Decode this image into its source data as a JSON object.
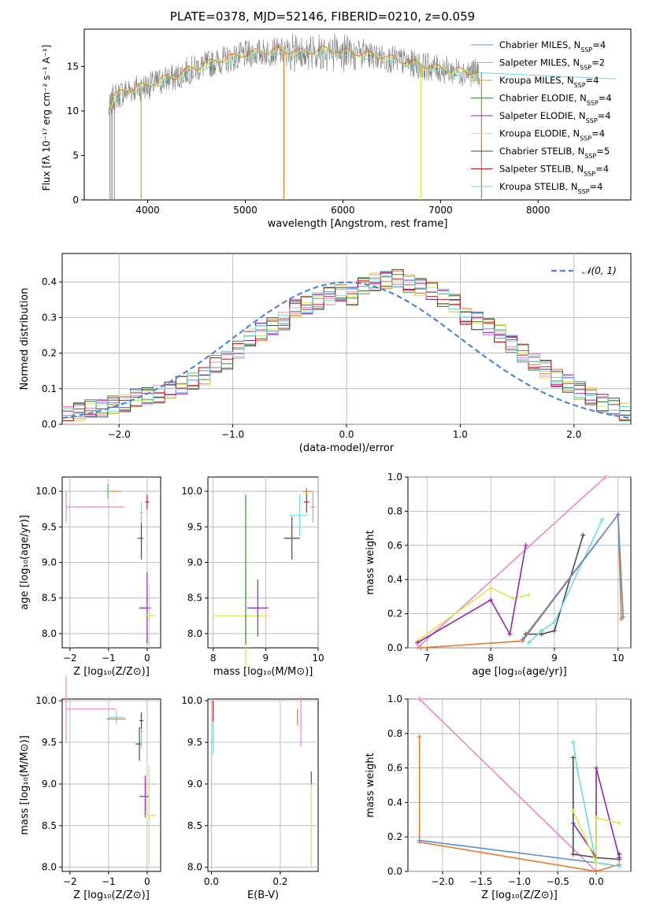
{
  "title": "PLATE=0378, MJD=52146, FIBERID=0210, z=0.059",
  "colors": {
    "chabrier_miles": "#5b8fd8",
    "salpeter_miles": "#e887c9",
    "kroupa_miles": "#b7b81f",
    "chabrier_elodie": "#3a8a3a",
    "salpeter_elodie": "#8e2aa8",
    "kroupa_elodie": "#d7e64d",
    "chabrier_stelib": "#4a4a4a",
    "salpeter_stelib": "#c41a1a",
    "kroupa_stelib": "#6fd8dd",
    "data_spectrum": "#808080",
    "miles_fit_line": "#e07a30",
    "normal_curve": "#4f86d6"
  },
  "chart_data": [
    {
      "type": "line",
      "title": "PLATE=0378, MJD=52146, FIBERID=0210, z=0.059",
      "xlabel": "wavelength [Angstrom, rest frame]",
      "ylabel": "Flux [f_λ 10^-17 erg cm^-2 s^-1 A^-1]",
      "xlim": [
        3350,
        8950
      ],
      "ylim": [
        0,
        19.2
      ],
      "xticks": [
        4000,
        5000,
        6000,
        7000,
        8000
      ],
      "yticks": [
        0,
        5,
        10,
        15
      ],
      "legend_position": "top-right",
      "legend": [
        "Chabrier MILES, N_SSP=4",
        "Salpeter MILES, N_SSP=2",
        "Kroupa MILES, N_SSP=4",
        "Chabrier ELODIE, N_SSP=4",
        "Salpeter ELODIE, N_SSP=4",
        "Kroupa ELODIE, N_SSP=4",
        "Chabrier STELIB, N_SSP=5",
        "Salpeter STELIB, N_SSP=4",
        "Kroupa STELIB, N_SSP=4"
      ],
      "continuum": {
        "x": [
          3600,
          3650,
          3700,
          3800,
          3900,
          4000,
          4100,
          4200,
          4300,
          4400,
          4500,
          4600,
          4700,
          4800,
          4900,
          5000,
          5100,
          5200,
          5300,
          5400,
          5500,
          5600,
          5700,
          5800,
          5900,
          6000,
          6100,
          6200,
          6300,
          6400,
          6500,
          6600,
          6700,
          6800,
          6900,
          7000,
          7100,
          7200,
          7300,
          7400
        ],
        "y": [
          10.0,
          11.5,
          11.8,
          12.3,
          12.6,
          12.8,
          13.2,
          13.6,
          13.8,
          14.5,
          14.8,
          15.2,
          15.5,
          15.8,
          16.0,
          16.3,
          16.5,
          16.6,
          16.7,
          16.6,
          16.6,
          16.5,
          16.6,
          16.8,
          16.7,
          16.6,
          16.5,
          16.3,
          16.2,
          16.0,
          15.8,
          15.6,
          15.3,
          15.1,
          14.9,
          14.7,
          14.5,
          14.4,
          14.3,
          14.3
        ]
      },
      "dips": [
        {
          "x": 3933,
          "y": 0
        },
        {
          "x": 5395,
          "y": 0
        },
        {
          "x": 6800,
          "y": 0
        },
        {
          "x": 7420,
          "y": 0
        }
      ],
      "model_tail": {
        "x": [
          7400,
          8200,
          8800
        ],
        "y": [
          14.3,
          13.9,
          13.6
        ]
      }
    },
    {
      "type": "line",
      "xlabel": "(data-model)/error",
      "ylabel": "Normed distribution",
      "xlim": [
        -2.5,
        2.5
      ],
      "ylim": [
        0,
        0.48
      ],
      "xticks": [
        -2,
        -1,
        0,
        1,
        2
      ],
      "yticks": [
        0.0,
        0.1,
        0.2,
        0.3,
        0.4
      ],
      "legend_position": "top-right",
      "legend": [
        "𝒩(0, 1)"
      ],
      "bin_width": 0.1,
      "bin_start": -2.5,
      "histogram": [
        0.025,
        0.035,
        0.045,
        0.045,
        0.055,
        0.06,
        0.075,
        0.08,
        0.085,
        0.095,
        0.11,
        0.12,
        0.135,
        0.17,
        0.18,
        0.21,
        0.245,
        0.26,
        0.275,
        0.29,
        0.325,
        0.335,
        0.345,
        0.36,
        0.37,
        0.36,
        0.39,
        0.4,
        0.405,
        0.41,
        0.395,
        0.385,
        0.375,
        0.355,
        0.34,
        0.305,
        0.29,
        0.275,
        0.255,
        0.225,
        0.2,
        0.175,
        0.155,
        0.13,
        0.115,
        0.095,
        0.08,
        0.06,
        0.05,
        0.035
      ]
    },
    {
      "type": "scatter",
      "xlabel": "Z [log10(Z/Z⊙)]",
      "ylabel": "age  [log10(age/yr)]",
      "xlim": [
        -2.2,
        0.35
      ],
      "ylim": [
        7.8,
        10.2
      ],
      "xticks": [
        -2,
        -1,
        0
      ],
      "yticks": [
        8.0,
        8.5,
        9.0,
        9.5,
        10.0
      ],
      "points": [
        {
          "x": -2.1,
          "y": 9.78,
          "xerr": [
            0.0,
            1.5
          ],
          "yerr": 0.22,
          "series": "salpeter_miles"
        },
        {
          "x": -1.02,
          "y": 10.0,
          "xerr": [
            0.05,
            0.35
          ],
          "yerr": 0.06,
          "series": "miles_fit_line"
        },
        {
          "x": -1.02,
          "y": 10.0,
          "xerr": [
            0.02,
            0.02
          ],
          "yerr": 0.1,
          "series": "kroupa_stelib"
        },
        {
          "x": -0.15,
          "y": 9.34,
          "xerr": [
            0.1,
            0.05
          ],
          "yerr": 0.3,
          "series": "chabrier_stelib"
        },
        {
          "x": -0.15,
          "y": 9.7,
          "xerr": [
            0.05,
            0.05
          ],
          "yerr": 0.15,
          "series": "kroupa_stelib"
        },
        {
          "x": 0.0,
          "y": 8.36,
          "xerr": [
            0.2,
            0.1
          ],
          "yerr": 0.5,
          "series": "salpeter_elodie"
        },
        {
          "x": 0.05,
          "y": 8.25,
          "xerr": [
            0.1,
            0.15
          ],
          "yerr": 0.45,
          "series": "kroupa_elodie"
        },
        {
          "x": 0.0,
          "y": 9.85,
          "xerr": [
            0.05,
            0.05
          ],
          "yerr": 0.1,
          "series": "salpeter_stelib"
        }
      ]
    },
    {
      "type": "scatter",
      "xlabel": "mass [log10(M/M⊙)]",
      "xlim": [
        7.9,
        10.0
      ],
      "ylim": [
        7.8,
        10.2
      ],
      "xticks": [
        8,
        9,
        10
      ],
      "yticks": [
        8.0,
        8.5,
        9.0,
        9.5,
        10.0
      ],
      "points": [
        {
          "x": 8.62,
          "y": 8.25,
          "xerr": [
            0.62,
            0.45
          ],
          "yerr": 0.7,
          "series": "kroupa_elodie"
        },
        {
          "x": 8.62,
          "y": 8.9,
          "xerr": [
            0.0,
            0.0
          ],
          "yerr": 1.05,
          "series": "chabrier_elodie"
        },
        {
          "x": 8.85,
          "y": 8.36,
          "xerr": [
            0.2,
            0.2
          ],
          "yerr": 0.4,
          "series": "salpeter_elodie"
        },
        {
          "x": 9.5,
          "y": 9.34,
          "xerr": [
            0.15,
            0.15
          ],
          "yerr": 0.3,
          "series": "chabrier_stelib"
        },
        {
          "x": 9.65,
          "y": 9.66,
          "xerr": [
            0.2,
            0.15
          ],
          "yerr": 0.3,
          "series": "kroupa_stelib"
        },
        {
          "x": 9.78,
          "y": 9.85,
          "xerr": [
            0.05,
            0.05
          ],
          "yerr": 0.15,
          "series": "salpeter_stelib"
        },
        {
          "x": 9.78,
          "y": 10.0,
          "xerr": [
            0.08,
            0.1
          ],
          "yerr": 0.05,
          "series": "miles_fit_line"
        },
        {
          "x": 9.9,
          "y": 9.78,
          "xerr": [
            0.05,
            0.05
          ],
          "yerr": 0.22,
          "series": "salpeter_miles"
        }
      ]
    },
    {
      "type": "line",
      "xlabel": "age  [log10(age/yr)]",
      "ylabel": "mass weight",
      "xlim": [
        6.7,
        10.2
      ],
      "ylim": [
        0,
        1.0
      ],
      "xticks": [
        7,
        8,
        9,
        10
      ],
      "yticks": [
        0.0,
        0.2,
        0.4,
        0.6,
        0.8,
        1.0
      ],
      "series": [
        {
          "series": "salpeter_miles",
          "x": [
            6.85,
            9.8
          ],
          "y": [
            0.0,
            1.0
          ]
        },
        {
          "series": "kroupa_elodie",
          "x": [
            6.85,
            8.0,
            8.35,
            8.6
          ],
          "y": [
            0.04,
            0.35,
            0.29,
            0.31
          ]
        },
        {
          "series": "salpeter_elodie",
          "x": [
            6.85,
            8.0,
            8.3,
            8.55
          ],
          "y": [
            0.03,
            0.28,
            0.08,
            0.6
          ]
        },
        {
          "series": "chabrier_stelib",
          "x": [
            8.55,
            8.8,
            9.0,
            9.45
          ],
          "y": [
            0.08,
            0.08,
            0.1,
            0.66
          ]
        },
        {
          "series": "kroupa_stelib",
          "x": [
            8.6,
            8.8,
            9.0,
            9.75
          ],
          "y": [
            0.03,
            0.1,
            0.15,
            0.75
          ]
        },
        {
          "series": "miles_fit_line",
          "x": [
            6.9,
            8.5,
            10.0,
            10.05
          ],
          "y": [
            0.0,
            0.04,
            0.78,
            0.17
          ]
        },
        {
          "series": "chabrier_miles",
          "x": [
            8.5,
            10.0,
            10.08
          ],
          "y": [
            0.05,
            0.78,
            0.18
          ]
        }
      ]
    },
    {
      "type": "scatter",
      "xlabel": "Z [log10(Z/Z⊙)]",
      "ylabel": "mass [log10(M/M⊙)]",
      "xlim": [
        -2.2,
        0.35
      ],
      "ylim": [
        7.95,
        10.02
      ],
      "xticks": [
        -2,
        -1,
        0
      ],
      "yticks": [
        8.0,
        8.5,
        9.0,
        9.5,
        10.0
      ],
      "points": [
        {
          "x": -2.1,
          "y": 9.9,
          "xerr": [
            0.0,
            1.3
          ],
          "yerr": 0.4,
          "series": "salpeter_miles"
        },
        {
          "x": -0.8,
          "y": 9.78,
          "xerr": [
            0.25,
            0.25
          ],
          "yerr": 0.04,
          "series": "miles_fit_line"
        },
        {
          "x": -0.8,
          "y": 9.8,
          "xerr": [
            0.2,
            0.2
          ],
          "yerr": 0.08,
          "series": "kroupa_stelib"
        },
        {
          "x": -0.2,
          "y": 9.48,
          "xerr": [
            0.1,
            0.05
          ],
          "yerr": 0.2,
          "series": "chabrier_stelib"
        },
        {
          "x": -0.15,
          "y": 9.63,
          "xerr": [
            0.1,
            0.05
          ],
          "yerr": 0.2,
          "series": "kroupa_stelib"
        },
        {
          "x": -0.15,
          "y": 9.76,
          "xerr": [
            0.05,
            0.05
          ],
          "yerr": 0.1,
          "series": "salpeter_stelib"
        },
        {
          "x": -0.05,
          "y": 8.85,
          "xerr": [
            0.15,
            0.1
          ],
          "yerr": 0.25,
          "series": "salpeter_elodie"
        },
        {
          "x": 0.05,
          "y": 8.62,
          "xerr": [
            0.15,
            0.2
          ],
          "yerr": 0.6,
          "series": "kroupa_elodie"
        }
      ]
    },
    {
      "type": "scatter",
      "xlabel": "E(B-V)",
      "xlim": [
        -0.01,
        0.31
      ],
      "ylim": [
        7.95,
        10.02
      ],
      "xticks": [
        0.0,
        0.2
      ],
      "yticks": [
        8.0,
        8.5,
        9.0,
        9.5,
        10.0
      ],
      "points": [
        {
          "x": 0.005,
          "y": 9.7,
          "xerr": [
            0.0,
            0.0
          ],
          "yerr": 0.3,
          "series": "salpeter_stelib"
        },
        {
          "x": 0.005,
          "y": 9.55,
          "xerr": [
            0.0,
            0.0
          ],
          "yerr": 0.2,
          "series": "kroupa_stelib"
        },
        {
          "x": 0.25,
          "y": 9.8,
          "xerr": [
            0.0,
            0.0
          ],
          "yerr": 0.1,
          "series": "miles_fit_line"
        },
        {
          "x": 0.26,
          "y": 9.75,
          "xerr": [
            0.0,
            0.0
          ],
          "yerr": 0.3,
          "series": "salpeter_miles"
        },
        {
          "x": 0.29,
          "y": 9.05,
          "xerr": [
            0.0,
            0.0
          ],
          "yerr": 0.1,
          "series": "salpeter_elodie"
        },
        {
          "x": 0.29,
          "y": 8.5,
          "xerr": [
            0.0,
            0.0
          ],
          "yerr": 0.5,
          "series": "kroupa_elodie"
        }
      ]
    },
    {
      "type": "line",
      "xlabel": "Z [log10(Z/Z⊙)]",
      "ylabel": "mass weight",
      "xlim": [
        -2.45,
        0.45
      ],
      "ylim": [
        0,
        1.0
      ],
      "xticks": [
        -2.0,
        -1.5,
        -1.0,
        -0.5,
        0.0
      ],
      "yticks": [
        0.0,
        0.2,
        0.4,
        0.6,
        0.8,
        1.0
      ],
      "series": [
        {
          "series": "salpeter_miles",
          "x": [
            -2.3,
            0.0
          ],
          "y": [
            1.0,
            0.0
          ]
        },
        {
          "series": "miles_fit_line",
          "x": [
            -2.3,
            -2.3,
            0.0,
            0.3
          ],
          "y": [
            0.78,
            0.17,
            0.0,
            0.04
          ]
        },
        {
          "series": "chabrier_miles",
          "x": [
            -2.3,
            0.0,
            0.3
          ],
          "y": [
            0.18,
            0.05,
            0.03
          ]
        },
        {
          "series": "kroupa_stelib",
          "x": [
            -0.3,
            -0.25,
            0.0,
            0.3
          ],
          "y": [
            0.75,
            0.6,
            0.05,
            0.03
          ]
        },
        {
          "series": "chabrier_stelib",
          "x": [
            -0.3,
            -0.3,
            0.0,
            0.3,
            0.3
          ],
          "y": [
            0.66,
            0.1,
            0.08,
            0.07,
            0.1
          ]
        },
        {
          "series": "salpeter_elodie",
          "x": [
            -0.3,
            0.0,
            0.0,
            0.3
          ],
          "y": [
            0.28,
            0.08,
            0.6,
            0.08
          ]
        },
        {
          "series": "kroupa_elodie",
          "x": [
            -0.3,
            0.0,
            0.0,
            0.3
          ],
          "y": [
            0.35,
            0.05,
            0.31,
            0.28
          ]
        }
      ]
    }
  ]
}
